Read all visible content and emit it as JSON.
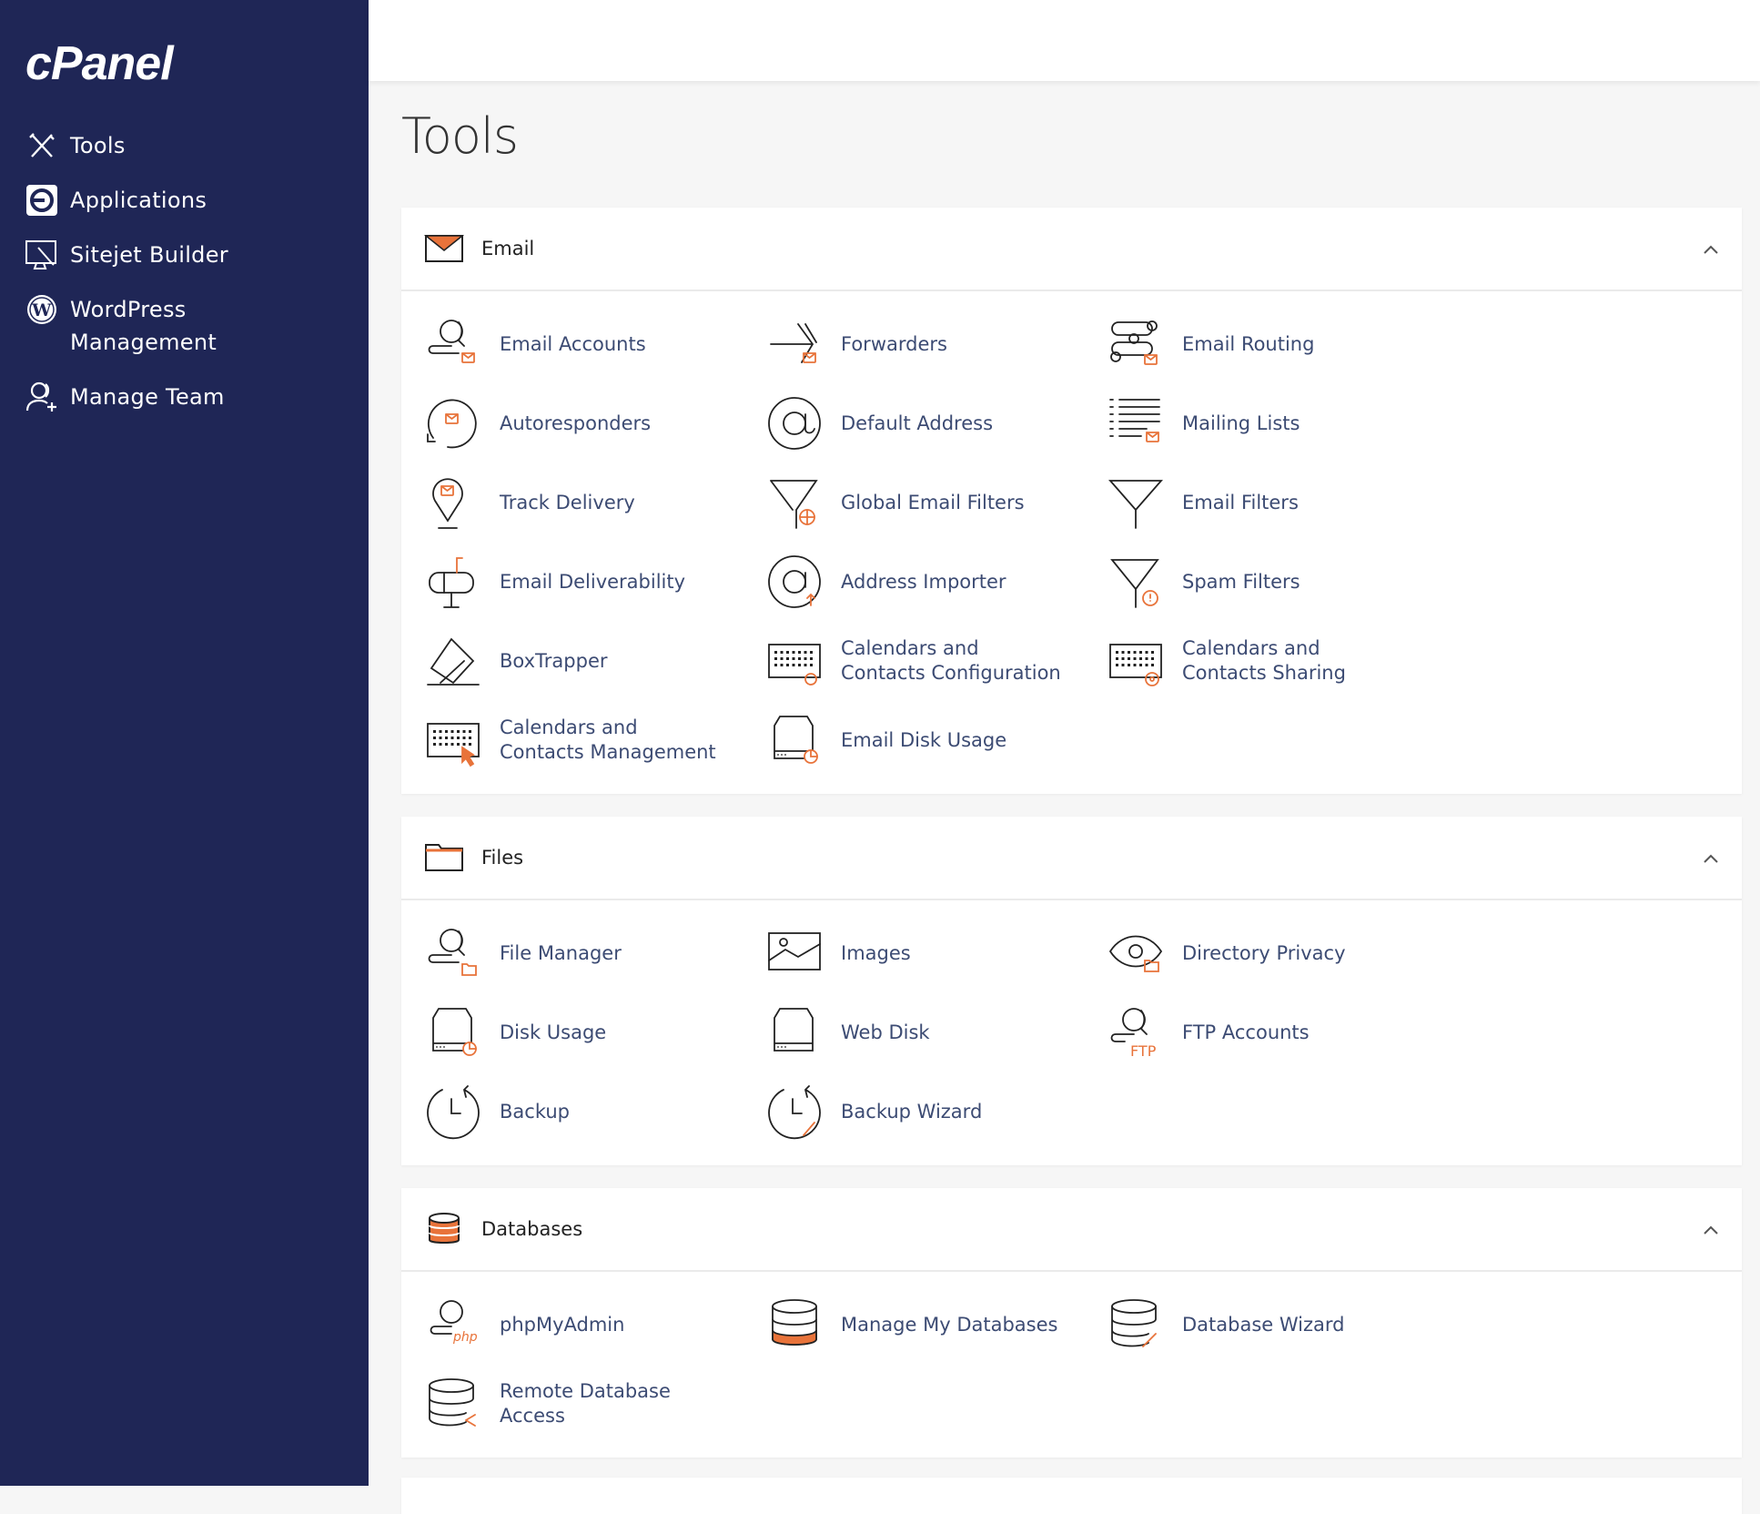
{
  "logo": "cPanel",
  "colors": {
    "sidebar": "#1f2656",
    "accent": "#e8733a",
    "link": "#3c4b73"
  },
  "sidebar": {
    "items": [
      {
        "label": "Tools",
        "icon": "tools-icon"
      },
      {
        "label": "Applications",
        "icon": "applications-icon"
      },
      {
        "label": "Sitejet Builder",
        "icon": "sitejet-icon"
      },
      {
        "label": "WordPress Management",
        "icon": "wordpress-icon"
      },
      {
        "label": "Manage Team",
        "icon": "manage-team-icon"
      }
    ]
  },
  "page_title": "Tools",
  "panels": [
    {
      "title": "Email",
      "icon": "envelope",
      "items": [
        {
          "label": "Email Accounts",
          "icon": "user-mail"
        },
        {
          "label": "Forwarders",
          "icon": "forward"
        },
        {
          "label": "Email Routing",
          "icon": "routing"
        },
        {
          "label": "Autoresponders",
          "icon": "autoresponder"
        },
        {
          "label": "Default Address",
          "icon": "at"
        },
        {
          "label": "Mailing Lists",
          "icon": "list"
        },
        {
          "label": "Track Delivery",
          "icon": "pin"
        },
        {
          "label": "Global Email Filters",
          "icon": "filter-globe"
        },
        {
          "label": "Email Filters",
          "icon": "filter"
        },
        {
          "label": "Email Deliverability",
          "icon": "mailbox"
        },
        {
          "label": "Address Importer",
          "icon": "at-up"
        },
        {
          "label": "Spam Filters",
          "icon": "filter-alert"
        },
        {
          "label": "BoxTrapper",
          "icon": "boxtrapper"
        },
        {
          "label": "Calendars and Contacts Configuration",
          "icon": "cal-at"
        },
        {
          "label": "Calendars and Contacts Sharing",
          "icon": "cal-gear"
        },
        {
          "label": "Calendars and Contacts Management",
          "icon": "cal-cursor"
        },
        {
          "label": "Email Disk Usage",
          "icon": "disk"
        }
      ]
    },
    {
      "title": "Files",
      "icon": "folder",
      "items": [
        {
          "label": "File Manager",
          "icon": "user-folder"
        },
        {
          "label": "Images",
          "icon": "image"
        },
        {
          "label": "Directory Privacy",
          "icon": "eye"
        },
        {
          "label": "Disk Usage",
          "icon": "disk"
        },
        {
          "label": "Web Disk",
          "icon": "webdisk"
        },
        {
          "label": "FTP Accounts",
          "icon": "ftp"
        },
        {
          "label": "Backup",
          "icon": "backup"
        },
        {
          "label": "Backup Wizard",
          "icon": "backup-wand"
        }
      ]
    },
    {
      "title": "Databases",
      "icon": "db-head",
      "items": [
        {
          "label": "phpMyAdmin",
          "icon": "php"
        },
        {
          "label": "Manage My Databases",
          "icon": "db-fill"
        },
        {
          "label": "Database Wizard",
          "icon": "db-wand"
        },
        {
          "label": "Remote Database Access",
          "icon": "db-remote"
        }
      ]
    }
  ]
}
